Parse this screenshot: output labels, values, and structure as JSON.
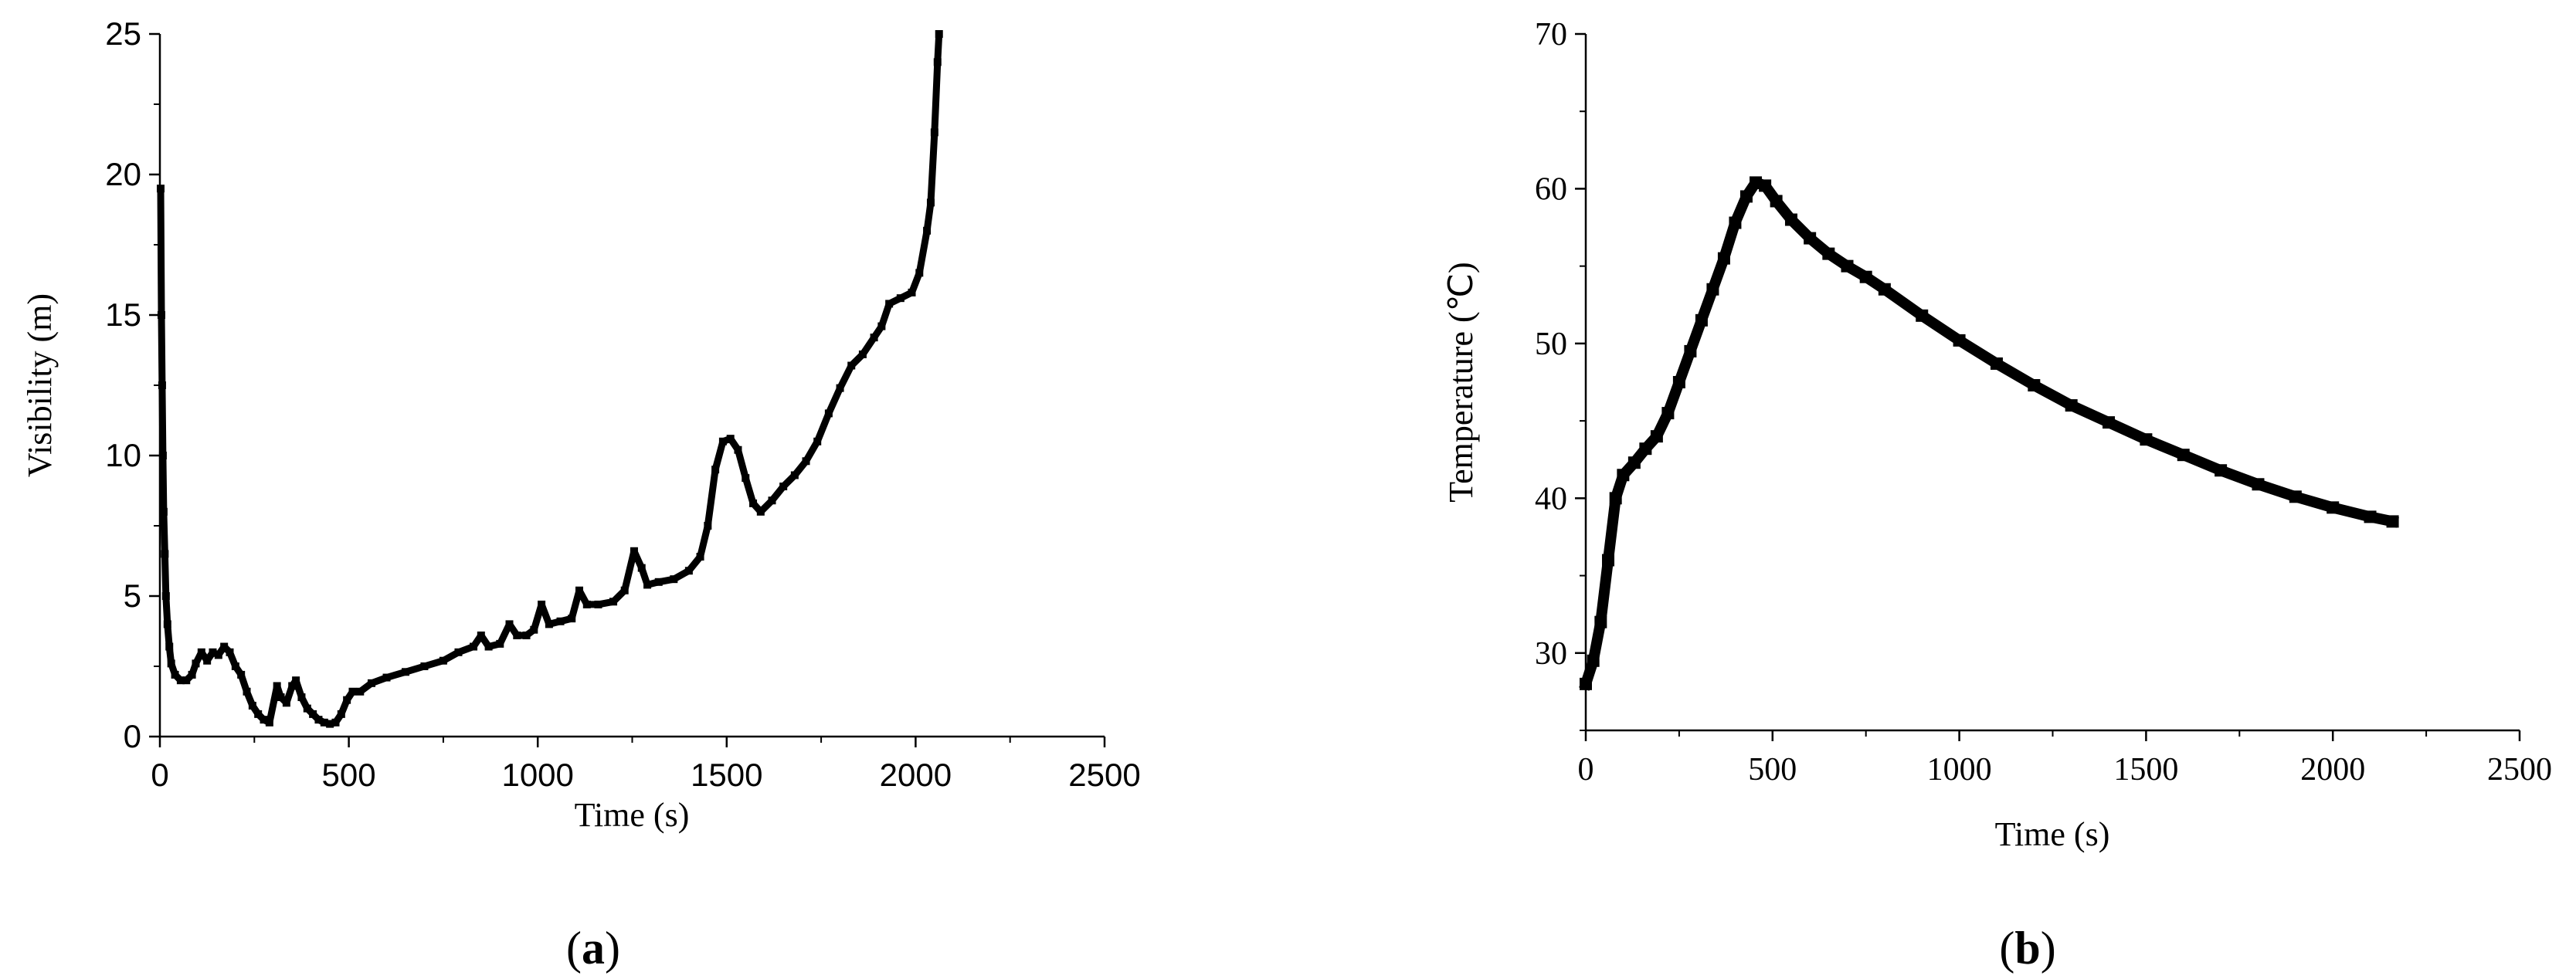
{
  "chart_data": [
    {
      "type": "scatter",
      "panel_label": "a",
      "xlabel": "Time (s)",
      "ylabel": "Visibility (m)",
      "xlim": [
        0,
        2500
      ],
      "ylim": [
        0,
        25
      ],
      "x_ticks": [
        0,
        500,
        1000,
        1500,
        2000,
        2500
      ],
      "y_ticks": [
        0,
        5,
        10,
        15,
        20,
        25
      ],
      "marker_color": "#000000",
      "series": [
        {
          "points": [
            [
              2,
              19.5
            ],
            [
              4,
              15
            ],
            [
              6,
              12.5
            ],
            [
              8,
              10
            ],
            [
              10,
              8
            ],
            [
              13,
              6.5
            ],
            [
              16,
              5
            ],
            [
              20,
              4
            ],
            [
              25,
              3.2
            ],
            [
              30,
              2.6
            ],
            [
              40,
              2.2
            ],
            [
              55,
              2.0
            ],
            [
              70,
              2.0
            ],
            [
              85,
              2.2
            ],
            [
              95,
              2.6
            ],
            [
              110,
              3.0
            ],
            [
              125,
              2.7
            ],
            [
              140,
              3.0
            ],
            [
              155,
              2.9
            ],
            [
              170,
              3.2
            ],
            [
              185,
              3.0
            ],
            [
              200,
              2.5
            ],
            [
              215,
              2.2
            ],
            [
              230,
              1.6
            ],
            [
              245,
              1.1
            ],
            [
              260,
              0.8
            ],
            [
              275,
              0.6
            ],
            [
              290,
              0.5
            ],
            [
              310,
              1.8
            ],
            [
              320,
              1.4
            ],
            [
              335,
              1.2
            ],
            [
              350,
              1.8
            ],
            [
              360,
              2.0
            ],
            [
              375,
              1.4
            ],
            [
              390,
              1.0
            ],
            [
              405,
              0.8
            ],
            [
              420,
              0.6
            ],
            [
              435,
              0.5
            ],
            [
              450,
              0.45
            ],
            [
              465,
              0.5
            ],
            [
              480,
              0.8
            ],
            [
              495,
              1.3
            ],
            [
              510,
              1.6
            ],
            [
              530,
              1.6
            ],
            [
              560,
              1.9
            ],
            [
              600,
              2.1
            ],
            [
              650,
              2.3
            ],
            [
              700,
              2.5
            ],
            [
              750,
              2.7
            ],
            [
              790,
              3.0
            ],
            [
              830,
              3.2
            ],
            [
              850,
              3.6
            ],
            [
              870,
              3.2
            ],
            [
              900,
              3.3
            ],
            [
              925,
              4.0
            ],
            [
              945,
              3.6
            ],
            [
              970,
              3.6
            ],
            [
              990,
              3.8
            ],
            [
              1010,
              4.7
            ],
            [
              1030,
              4.0
            ],
            [
              1060,
              4.1
            ],
            [
              1090,
              4.2
            ],
            [
              1110,
              5.2
            ],
            [
              1130,
              4.7
            ],
            [
              1160,
              4.7
            ],
            [
              1200,
              4.8
            ],
            [
              1230,
              5.2
            ],
            [
              1255,
              6.6
            ],
            [
              1275,
              6.0
            ],
            [
              1290,
              5.4
            ],
            [
              1320,
              5.5
            ],
            [
              1360,
              5.6
            ],
            [
              1400,
              5.9
            ],
            [
              1430,
              6.4
            ],
            [
              1450,
              7.5
            ],
            [
              1470,
              9.5
            ],
            [
              1490,
              10.5
            ],
            [
              1510,
              10.6
            ],
            [
              1530,
              10.2
            ],
            [
              1550,
              9.2
            ],
            [
              1570,
              8.3
            ],
            [
              1590,
              8.0
            ],
            [
              1620,
              8.4
            ],
            [
              1650,
              8.9
            ],
            [
              1680,
              9.3
            ],
            [
              1710,
              9.8
            ],
            [
              1740,
              10.5
            ],
            [
              1770,
              11.5
            ],
            [
              1800,
              12.4
            ],
            [
              1830,
              13.2
            ],
            [
              1860,
              13.6
            ],
            [
              1890,
              14.2
            ],
            [
              1910,
              14.6
            ],
            [
              1930,
              15.4
            ],
            [
              1960,
              15.6
            ],
            [
              1990,
              15.8
            ],
            [
              2010,
              16.5
            ],
            [
              2030,
              18.0
            ],
            [
              2040,
              19.0
            ],
            [
              2050,
              21.5
            ],
            [
              2058,
              24.0
            ],
            [
              2062,
              25.0
            ]
          ]
        }
      ]
    },
    {
      "type": "scatter",
      "panel_label": "b",
      "xlabel": "Time (s)",
      "ylabel": "Temperature (℃)",
      "xlim": [
        0,
        2500
      ],
      "ylim": [
        25,
        70
      ],
      "x_ticks": [
        0,
        500,
        1000,
        1500,
        2000,
        2500
      ],
      "y_ticks": [
        30,
        40,
        50,
        60,
        70
      ],
      "marker_color": "#000000",
      "series": [
        {
          "points": [
            [
              0,
              28.0
            ],
            [
              20,
              29.5
            ],
            [
              40,
              32.0
            ],
            [
              60,
              36.0
            ],
            [
              80,
              40.0
            ],
            [
              100,
              41.5
            ],
            [
              130,
              42.3
            ],
            [
              160,
              43.2
            ],
            [
              190,
              44.0
            ],
            [
              220,
              45.5
            ],
            [
              250,
              47.5
            ],
            [
              280,
              49.5
            ],
            [
              310,
              51.5
            ],
            [
              340,
              53.5
            ],
            [
              370,
              55.5
            ],
            [
              400,
              57.8
            ],
            [
              430,
              59.5
            ],
            [
              455,
              60.4
            ],
            [
              480,
              60.2
            ],
            [
              510,
              59.2
            ],
            [
              550,
              58.0
            ],
            [
              600,
              56.8
            ],
            [
              650,
              55.8
            ],
            [
              700,
              55.0
            ],
            [
              750,
              54.3
            ],
            [
              800,
              53.5
            ],
            [
              900,
              51.8
            ],
            [
              1000,
              50.2
            ],
            [
              1100,
              48.7
            ],
            [
              1200,
              47.3
            ],
            [
              1300,
              46.0
            ],
            [
              1400,
              44.9
            ],
            [
              1500,
              43.8
            ],
            [
              1600,
              42.8
            ],
            [
              1700,
              41.8
            ],
            [
              1800,
              40.9
            ],
            [
              1900,
              40.1
            ],
            [
              2000,
              39.4
            ],
            [
              2100,
              38.8
            ],
            [
              2160,
              38.5
            ]
          ]
        }
      ]
    }
  ]
}
